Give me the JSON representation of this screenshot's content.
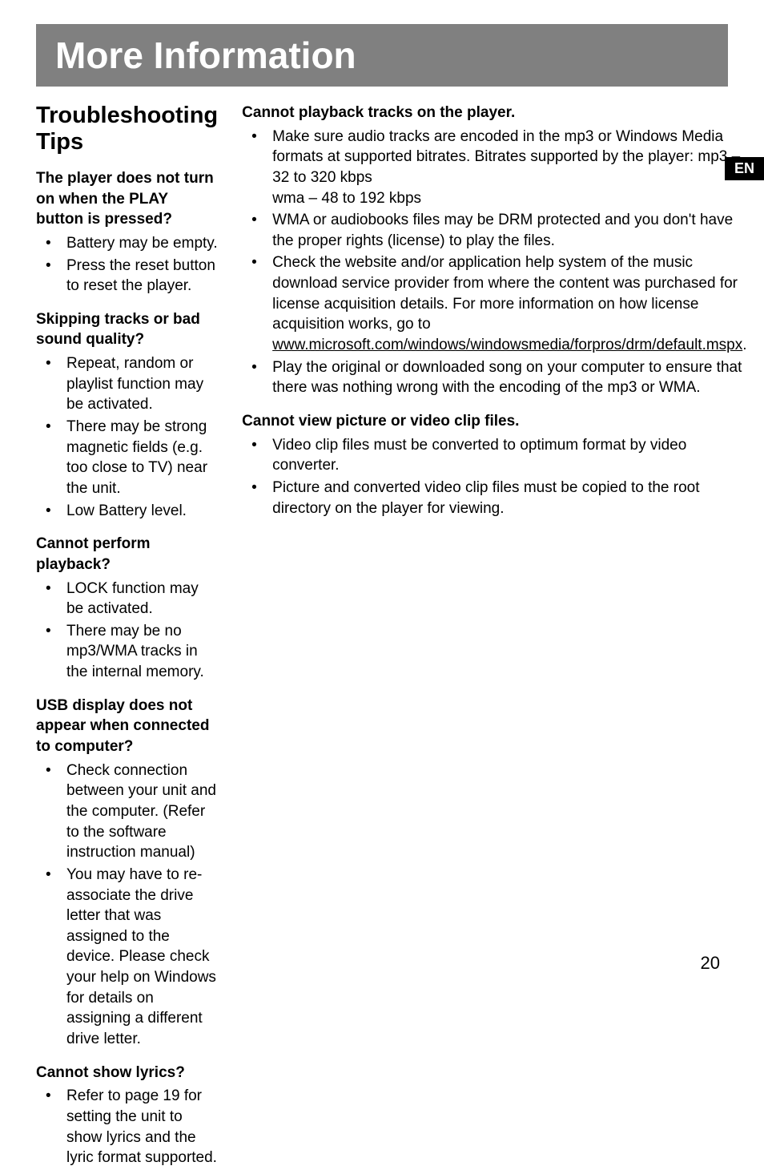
{
  "lang_badge": "EN",
  "page_number": "20",
  "header_title": "More Information",
  "section_title": "Troubleshooting Tips",
  "left_column": {
    "subsections": [
      {
        "title": "The player does not turn on when the PLAY button is pressed?",
        "items": [
          "Battery may be empty.",
          "Press the reset button to reset the player."
        ]
      },
      {
        "title": "Skipping tracks or bad sound quality?",
        "items": [
          "Repeat, random or playlist function may be activated.",
          "There may be strong magnetic fields (e.g. too close to TV) near the unit.",
          "Low Battery level."
        ]
      },
      {
        "title": "Cannot perform playback?",
        "items": [
          "LOCK function may be activated.",
          "There may be no mp3/WMA tracks in the internal memory."
        ]
      },
      {
        "title": "USB display does not appear when connected to computer?",
        "items": [
          "Check connection between your unit and the computer. (Refer to the software instruction manual)",
          "You may have to re-associate the drive letter that was assigned to the device.  Please check your help on Windows for details on assigning a different drive letter."
        ]
      },
      {
        "title": "Cannot show lyrics?",
        "items": [
          "Refer to page 19 for setting the unit to show lyrics and the lyric format supported."
        ]
      }
    ]
  },
  "right_column": {
    "subsections": [
      {
        "title": "Cannot playback tracks on the player.",
        "items": [
          {
            "text": "Make sure audio tracks are encoded in the mp3 or Windows Media formats at supported bitrates. Bitrates supported by the player: mp3 – 32 to 320 kbps\nwma – 48 to 192 kbps"
          },
          {
            "text": "WMA or audiobooks files may be DRM protected  and you don't have the proper rights (license) to play the files."
          },
          {
            "text": "Check the website and/or application help system of the music download service provider from where the content was purchased for license acquisition details. For more information on how license acquisition works, go to ",
            "link": "www.microsoft.com/windows/windowsmedia/forpros/drm/default.mspx",
            "suffix": "."
          },
          {
            "text": "Play the original or downloaded song on your computer to ensure that there was nothing wrong with the encoding of the mp3 or WMA."
          }
        ]
      },
      {
        "title": "Cannot view picture or video clip files.",
        "items": [
          {
            "text": "Video clip files must be converted to optimum format by video converter."
          },
          {
            "text": "Picture and converted video clip files must be copied to the root directory on the player for viewing."
          }
        ]
      }
    ]
  }
}
